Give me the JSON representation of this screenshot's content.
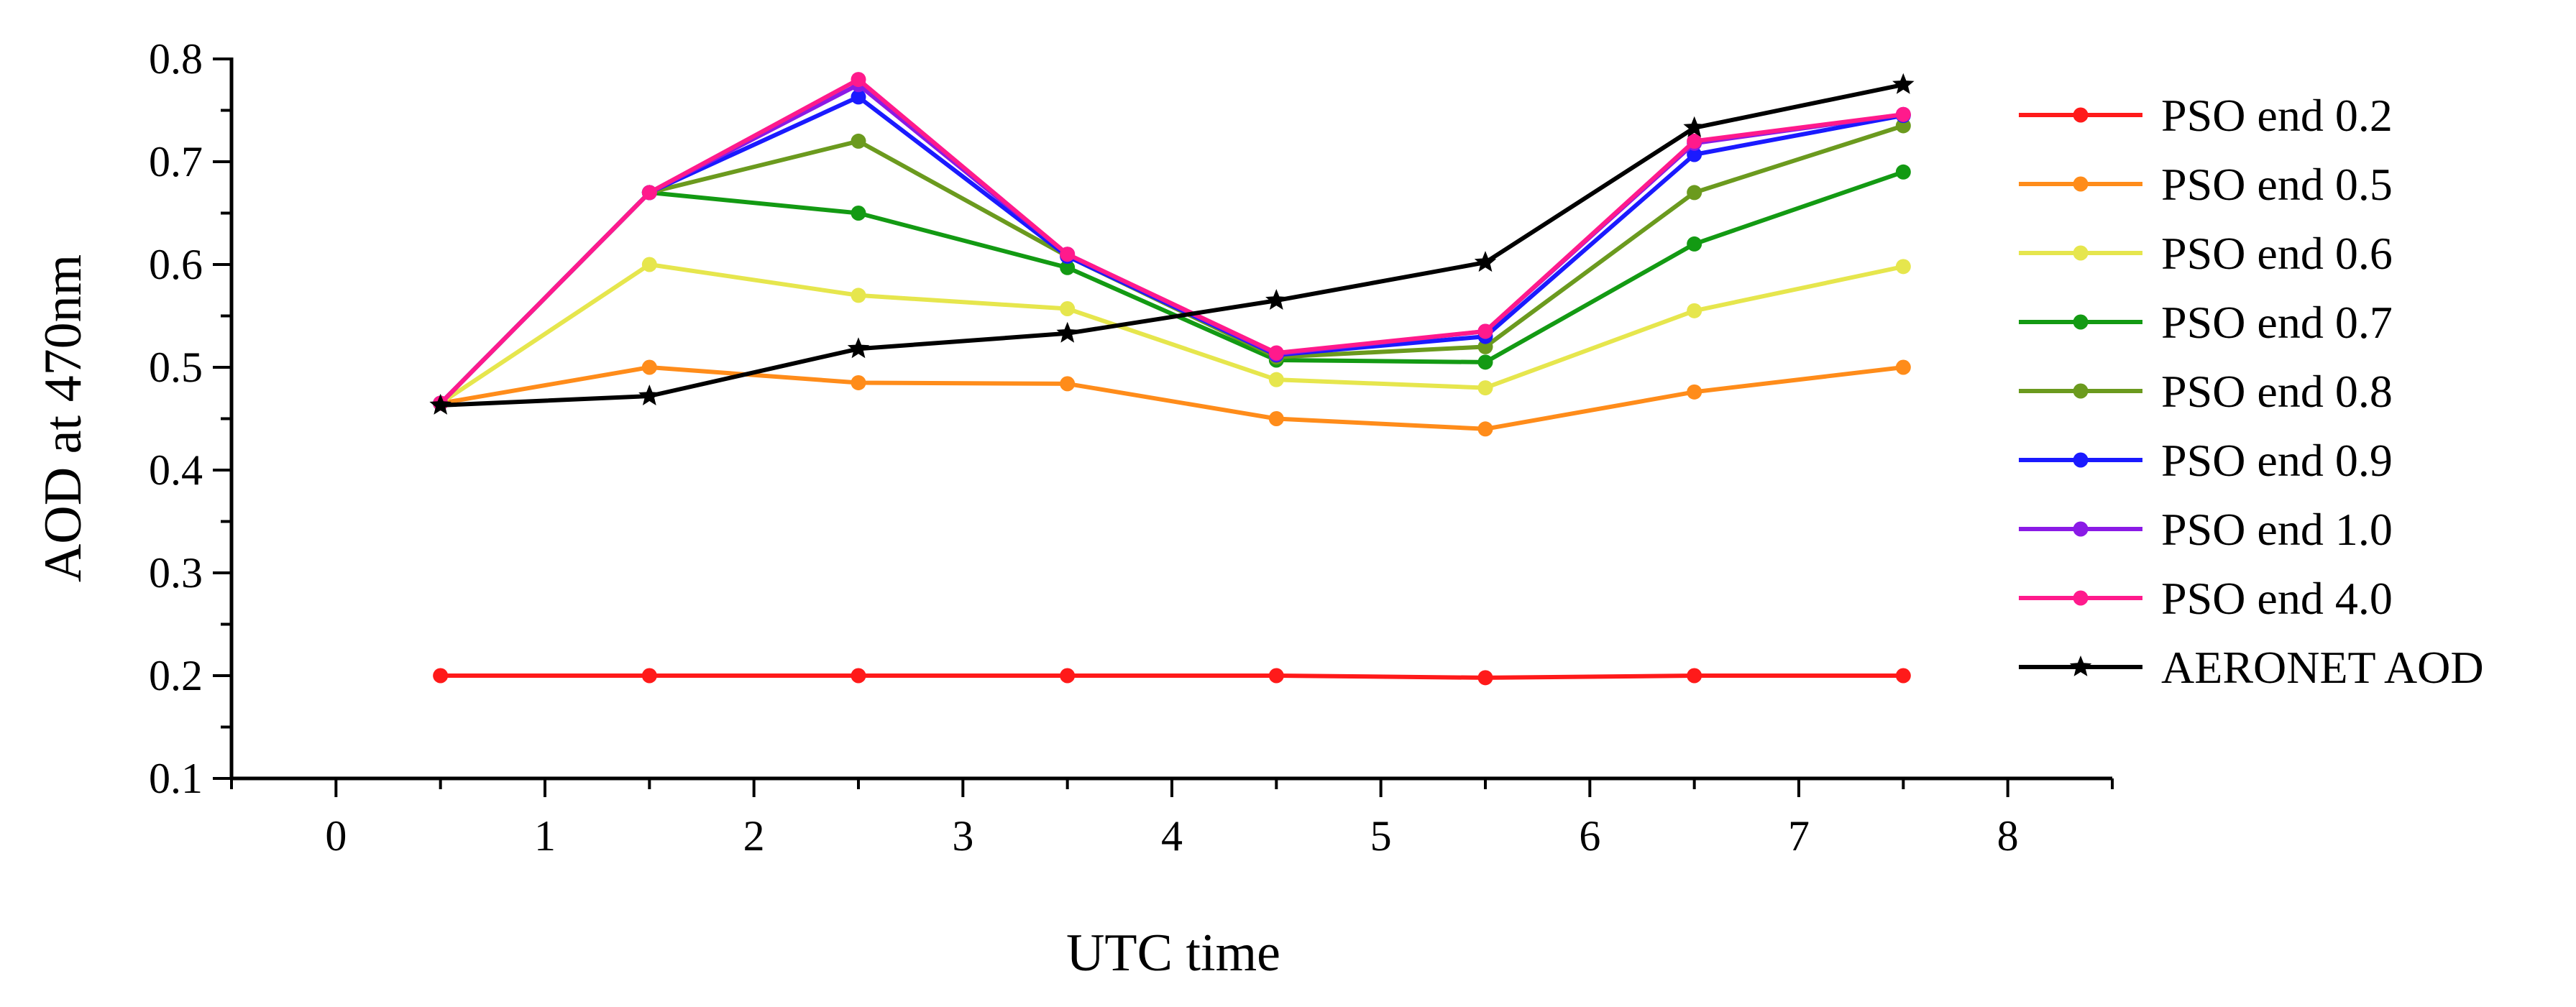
{
  "chart_data": {
    "type": "line",
    "title": "",
    "xlabel": "UTC time",
    "ylabel": "AOD at 470nm",
    "xlim": [
      -0.5,
      8.5
    ],
    "ylim": [
      0.1,
      0.8
    ],
    "xticks": [
      "0",
      "1",
      "2",
      "3",
      "4",
      "5",
      "6",
      "7",
      "8"
    ],
    "yticks": [
      "0.1",
      "0.2",
      "0.3",
      "0.4",
      "0.5",
      "0.6",
      "0.7",
      "0.8"
    ],
    "x": [
      0.5,
      1.5,
      2.5,
      3.5,
      4.5,
      5.5,
      6.5,
      7.5
    ],
    "legend_position": "right",
    "series": [
      {
        "name": "PSO end 0.2",
        "color": "#ff1a1a",
        "marker": "circle",
        "values": [
          0.2,
          0.2,
          0.2,
          0.2,
          0.2,
          0.198,
          0.2,
          0.2
        ]
      },
      {
        "name": "PSO end 0.5",
        "color": "#ff8c1a",
        "marker": "circle",
        "values": [
          0.465,
          0.5,
          0.485,
          0.484,
          0.45,
          0.44,
          0.476,
          0.5
        ]
      },
      {
        "name": "PSO end 0.6",
        "color": "#e6e64d",
        "marker": "circle",
        "values": [
          0.465,
          0.6,
          0.57,
          0.557,
          0.488,
          0.48,
          0.555,
          0.598
        ]
      },
      {
        "name": "PSO end 0.7",
        "color": "#139a13",
        "marker": "circle",
        "values": [
          0.465,
          0.67,
          0.65,
          0.597,
          0.507,
          0.505,
          0.62,
          0.69
        ]
      },
      {
        "name": "PSO end 0.8",
        "color": "#6b9a1e",
        "marker": "circle",
        "values": [
          0.465,
          0.67,
          0.72,
          0.608,
          0.51,
          0.52,
          0.67,
          0.735
        ]
      },
      {
        "name": "PSO end 0.9",
        "color": "#1a1aff",
        "marker": "circle",
        "values": [
          0.465,
          0.67,
          0.763,
          0.608,
          0.512,
          0.53,
          0.707,
          0.745
        ]
      },
      {
        "name": "PSO end 1.0",
        "color": "#8a1ae6",
        "marker": "circle",
        "values": [
          0.465,
          0.67,
          0.775,
          0.61,
          0.513,
          0.535,
          0.718,
          0.746
        ]
      },
      {
        "name": "PSO end 4.0",
        "color": "#ff1a8c",
        "marker": "circle",
        "values": [
          0.465,
          0.67,
          0.78,
          0.61,
          0.514,
          0.535,
          0.72,
          0.746
        ]
      },
      {
        "name": "AERONET AOD",
        "color": "#000000",
        "marker": "star",
        "values": [
          0.463,
          0.472,
          0.518,
          0.533,
          0.565,
          0.602,
          0.733,
          0.775
        ]
      }
    ]
  }
}
